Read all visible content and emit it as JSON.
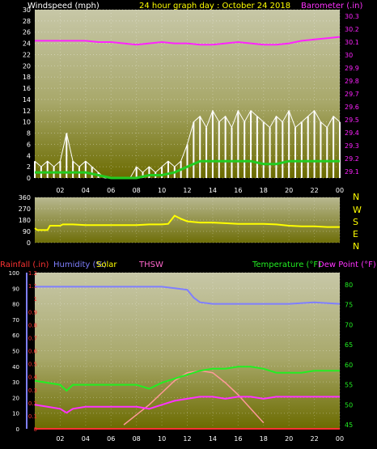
{
  "colors": {
    "background": "#000000",
    "plot_gradient_top": "#c7c7a7",
    "plot_gradient_bottom": "#6b6b00",
    "axis_text": "#ffffff",
    "windspeed": "#ffffff",
    "windspeed_avg": "#22cc22",
    "barometer": "#ff22ff",
    "direction": "#ffff00",
    "rain": "#ff3333",
    "humidity": "#7f7fff",
    "solar": "#ffff00",
    "thsw": "#ff66cc",
    "temperature": "#22ee22",
    "dewpoint": "#ff33ff",
    "solar_curve": "#ff9999"
  },
  "header": {
    "windspeed_label": "Windspeed (mph)",
    "title": "24 hour graph day : October 24 2018",
    "barometer_label": "Barometer (.in)"
  },
  "middle_header": {
    "rainfall_label": "Rainfall (.in)",
    "humidity_label": "Humidity (%)",
    "solar_label": "Solar",
    "thsw_label": "THSW",
    "temperature_label": "Temperature (°F)",
    "dewpoint_label": "Dew Point (°F)"
  },
  "compass": [
    "N",
    "W",
    "S",
    "E",
    "N"
  ],
  "chart_data": [
    {
      "type": "line",
      "title": "24 hour graph day : October 24 2018",
      "x_tick_labels": [
        "02",
        "04",
        "06",
        "08",
        "10",
        "12",
        "14",
        "16",
        "18",
        "20",
        "22",
        "00"
      ],
      "xlim_hours": [
        0,
        24
      ],
      "ylabel_left": "Windspeed (mph)",
      "ylim_left": [
        0,
        30
      ],
      "yticks_left": [
        0,
        2,
        4,
        6,
        8,
        10,
        12,
        14,
        16,
        18,
        20,
        22,
        24,
        26,
        28,
        30
      ],
      "ylabel_right": "Barometer (.in)",
      "ylim_right": [
        29.05,
        30.35
      ],
      "yticks_right": [
        "29.1",
        "29.2",
        "29.3",
        "29.4",
        "29.5",
        "29.6",
        "29.7",
        "29.8",
        "29.9",
        "30",
        "30.1",
        "30.2",
        "30.3"
      ],
      "series": [
        {
          "name": "Barometer (.in)",
          "axis": "right",
          "x": [
            0,
            1,
            2,
            3,
            4,
            5,
            6,
            7,
            8,
            9,
            10,
            11,
            12,
            13,
            14,
            15,
            16,
            17,
            18,
            19,
            20,
            21,
            22,
            23,
            24
          ],
          "values": [
            30.11,
            30.11,
            30.11,
            30.11,
            30.11,
            30.1,
            30.1,
            30.09,
            30.08,
            30.09,
            30.1,
            30.09,
            30.09,
            30.08,
            30.08,
            30.09,
            30.1,
            30.09,
            30.08,
            30.08,
            30.09,
            30.11,
            30.12,
            30.13,
            30.14
          ]
        },
        {
          "name": "Windspeed gust",
          "axis": "left",
          "x": [
            0,
            0.5,
            1,
            1.5,
            2,
            2.5,
            3,
            3.5,
            4,
            4.5,
            5,
            5.5,
            6,
            6.5,
            7,
            7.5,
            8,
            8.5,
            9,
            9.5,
            10,
            10.5,
            11,
            11.5,
            12,
            12.5,
            13,
            13.5,
            14,
            14.5,
            15,
            15.5,
            16,
            16.5,
            17,
            17.5,
            18,
            18.5,
            19,
            19.5,
            20,
            20.5,
            21,
            21.5,
            22,
            22.5,
            23,
            23.5,
            24
          ],
          "values": [
            3,
            2,
            3,
            2,
            3,
            8,
            3,
            2,
            3,
            2,
            1,
            0,
            0,
            0,
            0,
            0,
            2,
            1,
            2,
            1,
            2,
            3,
            2,
            3,
            6,
            10,
            11,
            9,
            12,
            10,
            11,
            9,
            12,
            10,
            12,
            11,
            10,
            9,
            11,
            10,
            12,
            9,
            10,
            11,
            12,
            10,
            9,
            11,
            10
          ]
        },
        {
          "name": "Windspeed average",
          "axis": "left",
          "x": [
            0,
            1,
            2,
            3,
            4,
            5,
            6,
            7,
            8,
            9,
            10,
            11,
            12,
            13,
            14,
            15,
            16,
            17,
            18,
            19,
            20,
            21,
            22,
            23,
            24
          ],
          "values": [
            1,
            1,
            1,
            1,
            1,
            0.5,
            0,
            0,
            0,
            0.5,
            0.5,
            1,
            2,
            3,
            3,
            3,
            3,
            3,
            2.5,
            2.5,
            3,
            3,
            3,
            3,
            3
          ]
        }
      ]
    },
    {
      "type": "line",
      "ylim": [
        0,
        360
      ],
      "yticks": [
        0,
        90,
        180,
        270,
        360
      ],
      "series": [
        {
          "name": "Wind direction",
          "x": [
            0,
            0.2,
            1,
            1.2,
            2,
            2.2,
            3,
            4,
            5,
            6,
            7,
            8,
            9,
            10,
            10.5,
            11,
            11.5,
            12,
            13,
            14,
            15,
            16,
            17,
            18,
            19,
            20,
            21,
            22,
            23,
            24
          ],
          "values": [
            115,
            100,
            100,
            135,
            135,
            145,
            145,
            140,
            140,
            140,
            140,
            140,
            145,
            145,
            150,
            215,
            190,
            170,
            160,
            160,
            155,
            150,
            150,
            150,
            145,
            135,
            130,
            130,
            125,
            125
          ]
        }
      ]
    },
    {
      "type": "line",
      "ylim_rain": [
        0,
        1.2
      ],
      "yticks_rain": [
        "0",
        "0.1",
        "0.2",
        "0.3",
        "0.4",
        "0.5",
        "0.6",
        "0.7",
        "0.8",
        "0.9",
        "1",
        "1.1",
        "1.2"
      ],
      "ylim_humidity": [
        0,
        100
      ],
      "yticks_humidity": [
        0,
        10,
        20,
        30,
        40,
        50,
        60,
        70,
        80,
        90,
        100
      ],
      "ylim_temperature": [
        44,
        83
      ],
      "yticks_temperature": [
        45,
        50,
        55,
        60,
        65,
        70,
        75,
        80
      ],
      "series": [
        {
          "name": "Humidity (%)",
          "axis": "humidity",
          "x": [
            0,
            2,
            4,
            6,
            8,
            10,
            11,
            12,
            12.5,
            13,
            14,
            16,
            18,
            20,
            22,
            24
          ],
          "values": [
            91,
            91,
            91,
            91,
            91,
            91,
            90,
            89,
            84,
            81,
            80,
            80,
            80,
            80,
            81,
            80
          ]
        },
        {
          "name": "Temperature (°F)",
          "axis": "temperature",
          "x": [
            0,
            1,
            2,
            2.5,
            3,
            4,
            5,
            6,
            7,
            8,
            9,
            10,
            11,
            12,
            13,
            14,
            15,
            16,
            17,
            18,
            19,
            20,
            21,
            22,
            23,
            24
          ],
          "values": [
            56,
            55.5,
            55,
            53.5,
            55,
            55,
            55,
            55,
            55,
            55,
            54,
            55.5,
            56.5,
            57.5,
            58.5,
            59,
            59,
            59.5,
            59.5,
            59,
            58,
            58,
            58,
            58.5,
            58.5,
            58.5
          ]
        },
        {
          "name": "Dew Point (°F)",
          "axis": "temperature",
          "x": [
            0,
            1,
            2,
            2.5,
            3,
            4,
            5,
            6,
            7,
            8,
            9,
            10,
            11,
            12,
            13,
            14,
            15,
            16,
            17,
            18,
            19,
            20,
            21,
            22,
            23,
            24
          ],
          "values": [
            50,
            49.5,
            49,
            48,
            49,
            49.5,
            49.5,
            49.5,
            49.5,
            49.5,
            49,
            50,
            51,
            51.5,
            52,
            52,
            51.5,
            52,
            52,
            51.5,
            52,
            52,
            52,
            52,
            52,
            52
          ]
        },
        {
          "name": "Solar",
          "axis": "temperature",
          "x": [
            7,
            8,
            9,
            10,
            11,
            12,
            13,
            14,
            15,
            16,
            17,
            18
          ],
          "values": [
            45,
            47.5,
            50,
            53,
            56,
            58,
            58.5,
            58,
            55.5,
            52.5,
            49,
            45.5
          ]
        },
        {
          "name": "Rainfall (.in)",
          "axis": "rain",
          "x": [
            0,
            24
          ],
          "values": [
            0,
            0
          ]
        }
      ]
    }
  ]
}
